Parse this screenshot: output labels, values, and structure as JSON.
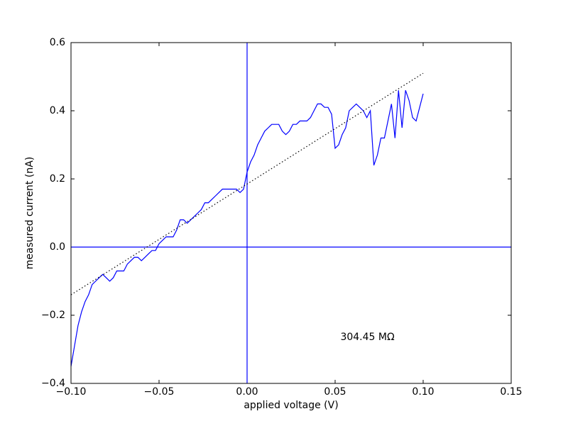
{
  "chart_data": {
    "type": "line",
    "xlabel": "applied voltage (V)",
    "ylabel": "measured current (nA)",
    "annotation": "304.45 MΩ",
    "xlim": [
      -0.1,
      0.15
    ],
    "ylim": [
      -0.4,
      0.6
    ],
    "xticks": [
      {
        "value": -0.1,
        "label": "−0.10"
      },
      {
        "value": -0.05,
        "label": "−0.05"
      },
      {
        "value": 0,
        "label": "0.00"
      },
      {
        "value": 0.05,
        "label": "0.05"
      },
      {
        "value": 0.1,
        "label": "0.10"
      },
      {
        "value": 0.15,
        "label": "0.15"
      }
    ],
    "yticks": [
      {
        "value": -0.4,
        "label": "−0.4"
      },
      {
        "value": -0.2,
        "label": "−0.2"
      },
      {
        "value": 0,
        "label": "0.0"
      },
      0.2,
      0.4,
      0.6
    ],
    "axhline": 0,
    "axvline": 0,
    "refline_color": "#0000ff",
    "series": [
      {
        "color": "#0000ff",
        "style": "solid",
        "x": [
          -0.1,
          -0.098,
          -0.096,
          -0.094,
          -0.092,
          -0.09,
          -0.088,
          -0.086,
          -0.084,
          -0.082,
          -0.08,
          -0.078,
          -0.076,
          -0.074,
          -0.072,
          -0.07,
          -0.068,
          -0.066,
          -0.064,
          -0.062,
          -0.06,
          -0.058,
          -0.056,
          -0.054,
          -0.052,
          -0.05,
          -0.048,
          -0.046,
          -0.044,
          -0.042,
          -0.04,
          -0.038,
          -0.036,
          -0.034,
          -0.032,
          -0.03,
          -0.028,
          -0.026,
          -0.024,
          -0.022,
          -0.02,
          -0.018,
          -0.016,
          -0.014,
          -0.012,
          -0.01,
          -0.008,
          -0.006,
          -0.004,
          -0.002,
          0,
          0.002,
          0.004,
          0.006,
          0.008,
          0.01,
          0.012,
          0.014,
          0.016,
          0.018,
          0.02,
          0.022,
          0.024,
          0.026,
          0.028,
          0.03,
          0.032,
          0.034,
          0.036,
          0.038,
          0.04,
          0.042,
          0.044,
          0.046,
          0.048,
          0.05,
          0.052,
          0.054,
          0.056,
          0.058,
          0.06,
          0.062,
          0.064,
          0.066,
          0.068,
          0.07,
          0.072,
          0.074,
          0.076,
          0.078,
          0.08,
          0.082,
          0.084,
          0.086,
          0.088,
          0.09,
          0.092,
          0.094,
          0.096,
          0.098,
          0.1
        ],
        "values": [
          -0.35,
          -0.29,
          -0.23,
          -0.19,
          -0.16,
          -0.14,
          -0.11,
          -0.1,
          -0.09,
          -0.08,
          -0.09,
          -0.1,
          -0.09,
          -0.07,
          -0.07,
          -0.07,
          -0.05,
          -0.04,
          -0.03,
          -0.03,
          -0.04,
          -0.03,
          -0.02,
          -0.01,
          -0.01,
          0.01,
          0.02,
          0.03,
          0.03,
          0.03,
          0.05,
          0.08,
          0.08,
          0.07,
          0.08,
          0.09,
          0.1,
          0.11,
          0.13,
          0.13,
          0.14,
          0.15,
          0.16,
          0.17,
          0.17,
          0.17,
          0.17,
          0.17,
          0.16,
          0.17,
          0.22,
          0.25,
          0.27,
          0.3,
          0.32,
          0.34,
          0.35,
          0.36,
          0.36,
          0.36,
          0.34,
          0.33,
          0.34,
          0.36,
          0.36,
          0.37,
          0.37,
          0.37,
          0.38,
          0.4,
          0.42,
          0.42,
          0.41,
          0.41,
          0.39,
          0.29,
          0.3,
          0.33,
          0.35,
          0.4,
          0.41,
          0.42,
          0.41,
          0.4,
          0.38,
          0.4,
          0.24,
          0.27,
          0.32,
          0.32,
          0.37,
          0.42,
          0.32,
          0.46,
          0.35,
          0.46,
          0.43,
          0.38,
          0.37,
          0.41,
          0.45
        ]
      },
      {
        "color": "#000000",
        "style": "dotted",
        "x": [
          -0.1,
          0.1
        ],
        "values": [
          -0.14,
          0.51
        ]
      }
    ]
  }
}
